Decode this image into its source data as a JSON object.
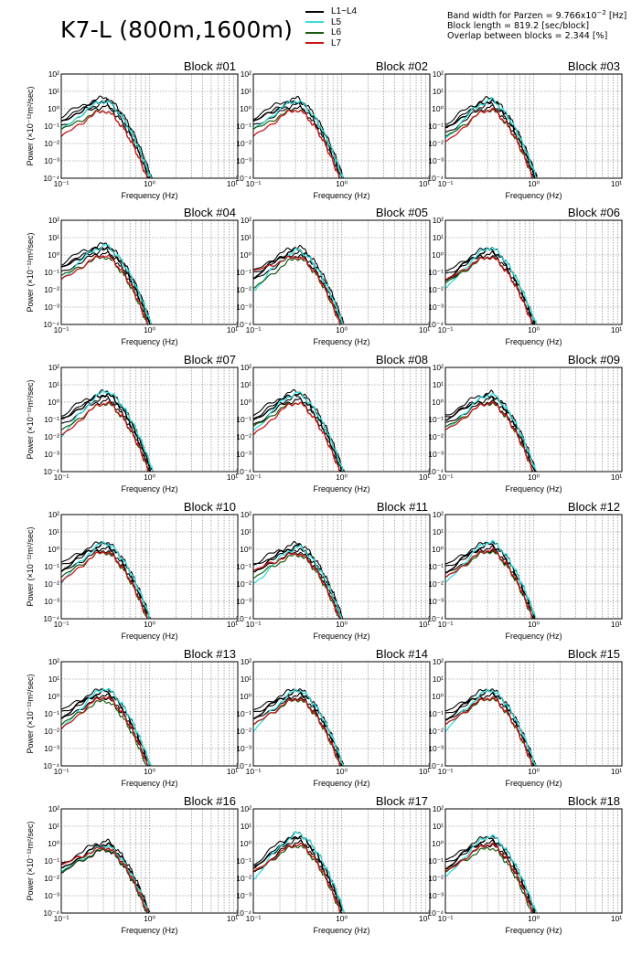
{
  "title": "K7-L (800m,1600m)",
  "params": {
    "bandwidth_prefix": "Band width for Parzen = 9.766x10",
    "bandwidth_exp": "−2",
    "bandwidth_suffix": " [Hz]",
    "block_length": "Block length = 819.2 [sec/block]",
    "overlap": "Overlap between blocks = 2.344 [%]"
  },
  "legend": [
    {
      "label": "L1~L4",
      "color": "#000000"
    },
    {
      "label": "L5",
      "color": "#33dddd"
    },
    {
      "label": "L6",
      "color": "#1a5c12"
    },
    {
      "label": "L7",
      "color": "#cc1818"
    }
  ],
  "axis_labels": {
    "x": "Frequency (Hz)",
    "y": "Power (×10⁻¹²m²/sec)"
  },
  "chart_data": {
    "type": "line",
    "grid": true,
    "x_scale": "log",
    "y_scale": "log",
    "xlim": [
      0.1,
      10
    ],
    "ylim": [
      0.0001,
      100
    ],
    "x_ticks": [
      "10⁻¹",
      "10⁰",
      "10¹"
    ],
    "y_ticks": [
      "10⁻⁴",
      "10⁻³",
      "10⁻²",
      "10⁻¹",
      "10⁰",
      "10¹",
      "10²"
    ],
    "xlabel": "Frequency (Hz)",
    "ylabel": "Power (×10⁻¹²m²/sec)",
    "legend_position": "top-center",
    "blocks": [
      {
        "title": "Block #01",
        "peak_x": 0.32,
        "peaks": [
          3.2,
          3.0,
          0.8,
          0.8
        ],
        "low": [
          0.15,
          0.05,
          0.05,
          0.02
        ],
        "tail2": [
          0.001,
          0.002,
          0.001,
          0.0003
        ]
      },
      {
        "title": "Block #02",
        "peak_x": 0.32,
        "peaks": [
          2.8,
          3.0,
          0.9,
          0.9
        ],
        "low": [
          0.15,
          0.05,
          0.05,
          0.02
        ],
        "tail2": [
          0.002,
          0.001,
          0.0008,
          0.0004
        ]
      },
      {
        "title": "Block #03",
        "peak_x": 0.33,
        "peaks": [
          3.0,
          3.5,
          0.9,
          1.0
        ],
        "low": [
          0.06,
          0.02,
          0.02,
          0.01
        ],
        "tail2": [
          0.002,
          0.001,
          0.001,
          0.0002
        ]
      },
      {
        "title": "Block #04",
        "peak_x": 0.32,
        "peaks": [
          3.0,
          3.6,
          0.8,
          1.0
        ],
        "low": [
          0.15,
          0.04,
          0.05,
          0.03
        ],
        "tail2": [
          0.0003,
          0.0003,
          0.0005,
          0.0002
        ]
      },
      {
        "title": "Block #05",
        "peak_x": 0.33,
        "peaks": [
          2.2,
          2.0,
          0.7,
          0.8
        ],
        "low": [
          0.05,
          0.01,
          0.01,
          0.1
        ],
        "tail2": [
          0.0003,
          0.0002,
          0.0003,
          0.0004
        ]
      },
      {
        "title": "Block #06",
        "peak_x": 0.33,
        "peaks": [
          2.0,
          2.8,
          0.8,
          0.8
        ],
        "low": [
          0.04,
          0.01,
          0.02,
          0.03
        ],
        "tail2": [
          0.0004,
          0.003,
          0.001,
          0.0006
        ]
      },
      {
        "title": "Block #07",
        "peak_x": 0.33,
        "peaks": [
          3.0,
          4.5,
          0.9,
          1.0
        ],
        "low": [
          0.08,
          0.01,
          0.02,
          0.01
        ],
        "tail2": [
          0.0008,
          0.0005,
          0.001,
          0.0004
        ]
      },
      {
        "title": "Block #08",
        "peak_x": 0.32,
        "peaks": [
          3.2,
          3.5,
          1.0,
          1.0
        ],
        "low": [
          0.07,
          0.02,
          0.03,
          0.01
        ],
        "tail2": [
          0.0006,
          0.0004,
          0.0006,
          0.0003
        ]
      },
      {
        "title": "Block #09",
        "peak_x": 0.33,
        "peaks": [
          2.5,
          3.0,
          0.9,
          1.0
        ],
        "low": [
          0.08,
          0.02,
          0.03,
          0.02
        ],
        "tail2": [
          0.0005,
          0.0003,
          0.0006,
          0.0003
        ]
      },
      {
        "title": "Block #10",
        "peak_x": 0.32,
        "peaks": [
          2.0,
          2.5,
          0.7,
          0.8
        ],
        "low": [
          0.06,
          0.01,
          0.02,
          0.01
        ],
        "tail2": [
          0.0003,
          0.002,
          0.0004,
          0.002
        ]
      },
      {
        "title": "Block #11",
        "peak_x": 0.33,
        "peaks": [
          1.6,
          1.4,
          0.5,
          0.6
        ],
        "low": [
          0.06,
          0.01,
          0.02,
          0.05
        ],
        "tail2": [
          0.0003,
          0.0002,
          0.0005,
          0.002
        ]
      },
      {
        "title": "Block #12",
        "peak_x": 0.33,
        "peaks": [
          2.0,
          3.0,
          0.8,
          1.0
        ],
        "low": [
          0.05,
          0.01,
          0.02,
          0.02
        ],
        "tail2": [
          0.0003,
          0.0003,
          0.0003,
          0.0002
        ]
      },
      {
        "title": "Block #13",
        "peak_x": 0.32,
        "peaks": [
          2.0,
          3.0,
          0.6,
          1.0
        ],
        "low": [
          0.06,
          0.01,
          0.02,
          0.01
        ],
        "tail2": [
          0.001,
          0.0006,
          0.0005,
          0.0003
        ]
      },
      {
        "title": "Block #14",
        "peak_x": 0.33,
        "peaks": [
          2.0,
          2.5,
          0.7,
          0.8
        ],
        "low": [
          0.06,
          0.01,
          0.02,
          0.02
        ],
        "tail2": [
          0.0004,
          0.0003,
          0.0005,
          0.0008
        ]
      },
      {
        "title": "Block #15",
        "peak_x": 0.33,
        "peaks": [
          2.0,
          2.5,
          0.8,
          0.9
        ],
        "low": [
          0.05,
          0.01,
          0.02,
          0.02
        ],
        "tail2": [
          0.0004,
          0.0008,
          0.0004,
          0.0004
        ]
      },
      {
        "title": "Block #16",
        "peak_x": 0.33,
        "peaks": [
          1.0,
          0.8,
          0.5,
          0.6
        ],
        "low": [
          0.03,
          0.02,
          0.02,
          0.05
        ],
        "tail2": [
          0.0004,
          0.0005,
          0.0008,
          0.001
        ]
      },
      {
        "title": "Block #17",
        "peak_x": 0.33,
        "peaks": [
          2.8,
          4.0,
          0.8,
          1.0
        ],
        "low": [
          0.03,
          0.01,
          0.02,
          0.02
        ],
        "tail2": [
          0.0006,
          0.0003,
          0.002,
          0.001
        ]
      },
      {
        "title": "Block #18",
        "peak_x": 0.33,
        "peaks": [
          2.0,
          3.0,
          0.6,
          1.0
        ],
        "low": [
          0.04,
          0.01,
          0.02,
          0.02
        ],
        "tail2": [
          0.0005,
          0.002,
          0.001,
          0.0008
        ]
      }
    ]
  }
}
